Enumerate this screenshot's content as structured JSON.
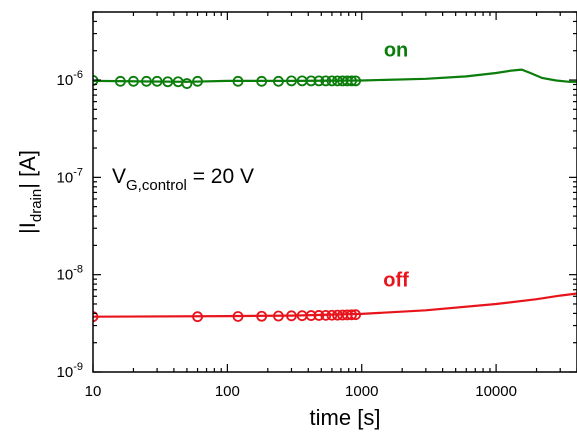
{
  "chart_data": {
    "type": "scatter",
    "title": "",
    "xlabel": "time [s]",
    "ylabel_parts": {
      "pre": "|I",
      "sub": "drain",
      "post": "| [A]"
    },
    "xscale": "log",
    "yscale": "log",
    "xlim": [
      10,
      40000
    ],
    "ylim": [
      1e-09,
      5e-06
    ],
    "x_ticks": [
      {
        "value": 10,
        "label": "10"
      },
      {
        "value": 100,
        "label": "100"
      },
      {
        "value": 1000,
        "label": "1000"
      },
      {
        "value": 10000,
        "label": "10000"
      }
    ],
    "y_ticks": [
      {
        "value": 1e-09,
        "base": "10",
        "exp": "-9"
      },
      {
        "value": 1e-08,
        "base": "10",
        "exp": "-8"
      },
      {
        "value": 1e-07,
        "base": "10",
        "exp": "-7"
      },
      {
        "value": 1e-06,
        "base": "10",
        "exp": "-6"
      }
    ],
    "grid": false,
    "annotation": {
      "pre": "V",
      "sub": "G,control",
      "post": " = 20 V"
    },
    "series": [
      {
        "name": "on",
        "color": "#0a7d0a",
        "line": {
          "x": [
            10,
            50,
            100,
            300,
            1000,
            3000,
            6000,
            10000,
            13000,
            15500,
            18000,
            22000,
            28000,
            35000,
            40000
          ],
          "y": [
            9.8e-07,
            9.6e-07,
            9.8e-07,
            9.8e-07,
            9.9e-07,
            1.03e-06,
            1.09e-06,
            1.18e-06,
            1.25e-06,
            1.28e-06,
            1.18e-06,
            1.05e-06,
            9.9e-07,
            9.6e-07,
            9.6e-07
          ]
        },
        "markers": {
          "x": [
            10,
            16,
            20,
            25,
            30,
            36,
            43,
            50,
            60,
            120,
            180,
            240,
            300,
            360,
            420,
            480,
            540,
            600,
            660,
            720,
            780,
            840,
            900
          ],
          "y": [
            9.9e-07,
            9.7e-07,
            9.7e-07,
            9.7e-07,
            9.7e-07,
            9.6e-07,
            9.6e-07,
            9.2e-07,
            9.7e-07,
            9.7e-07,
            9.7e-07,
            9.7e-07,
            9.8e-07,
            9.8e-07,
            9.8e-07,
            9.8e-07,
            9.8e-07,
            9.8e-07,
            9.8e-07,
            9.8e-07,
            9.8e-07,
            9.8e-07,
            9.8e-07
          ]
        }
      },
      {
        "name": "off",
        "color": "#e8141c",
        "line": {
          "x": [
            10,
            100,
            300,
            1000,
            3000,
            10000,
            20000,
            30000,
            40000
          ],
          "y": [
            3.7e-09,
            3.75e-09,
            3.8e-09,
            3.95e-09,
            4.3e-09,
            5e-09,
            5.6e-09,
            6.1e-09,
            6.4e-09
          ]
        },
        "markers": {
          "x": [
            10,
            60,
            120,
            180,
            240,
            300,
            360,
            420,
            480,
            540,
            600,
            660,
            720,
            780,
            840,
            900
          ],
          "y": [
            3.7e-09,
            3.7e-09,
            3.72e-09,
            3.74e-09,
            3.76e-09,
            3.78e-09,
            3.79e-09,
            3.8e-09,
            3.81e-09,
            3.82e-09,
            3.83e-09,
            3.84e-09,
            3.85e-09,
            3.86e-09,
            3.87e-09,
            3.88e-09
          ]
        }
      }
    ]
  }
}
